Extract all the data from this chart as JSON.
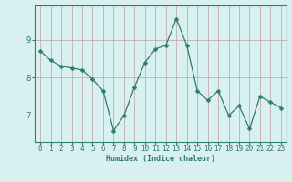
{
  "x": [
    0,
    1,
    2,
    3,
    4,
    5,
    6,
    7,
    8,
    9,
    10,
    11,
    12,
    13,
    14,
    15,
    16,
    17,
    18,
    19,
    20,
    21,
    22,
    23
  ],
  "y": [
    8.7,
    8.45,
    8.3,
    8.25,
    8.2,
    7.95,
    7.65,
    6.6,
    7.0,
    7.75,
    8.4,
    8.75,
    8.85,
    9.55,
    8.85,
    7.65,
    7.4,
    7.65,
    7.0,
    7.25,
    6.65,
    7.5,
    7.35,
    7.2
  ],
  "line_color": "#2e7d6e",
  "marker": "D",
  "marker_size": 2.5,
  "bg_color": "#d8f0f0",
  "grid_color": "#c0a0a0",
  "axis_color": "#2e7d6e",
  "xlabel": "Humidex (Indice chaleur)",
  "xlim": [
    -0.5,
    23.5
  ],
  "ylim": [
    6.3,
    9.9
  ],
  "yticks": [
    7,
    8,
    9
  ],
  "xticks": [
    0,
    1,
    2,
    3,
    4,
    5,
    6,
    7,
    8,
    9,
    10,
    11,
    12,
    13,
    14,
    15,
    16,
    17,
    18,
    19,
    20,
    21,
    22,
    23
  ],
  "xlabel_fontsize": 6.0,
  "tick_fontsize": 5.5,
  "ytick_fontsize": 6.5
}
